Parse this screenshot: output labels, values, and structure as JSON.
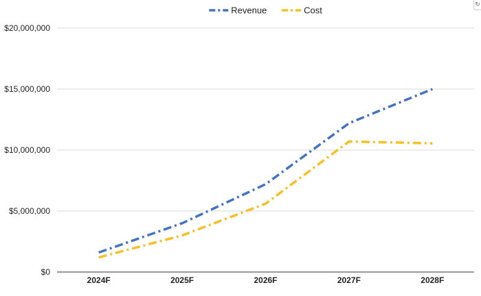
{
  "chart_data": {
    "type": "line",
    "categories": [
      "2024F",
      "2025F",
      "2026F",
      "2027F",
      "2028F"
    ],
    "series": [
      {
        "name": "Revenue",
        "color": "#4472c4",
        "values": [
          1600000,
          4000000,
          7200000,
          12200000,
          15000000
        ]
      },
      {
        "name": "Cost",
        "color": "#f6c026",
        "values": [
          1200000,
          3000000,
          5600000,
          10700000,
          10550000
        ]
      }
    ],
    "y_ticks": [
      0,
      5000000,
      10000000,
      15000000,
      20000000
    ],
    "y_tick_labels": [
      "$0",
      "$5,000,000",
      "$10,000,000",
      "$15,000,000",
      "$20,000,000"
    ],
    "ylim": [
      0,
      20000000
    ],
    "grid": true,
    "legend_position": "top-center",
    "line_style": "dash-dot"
  },
  "corner_icon": "refresh-icon"
}
